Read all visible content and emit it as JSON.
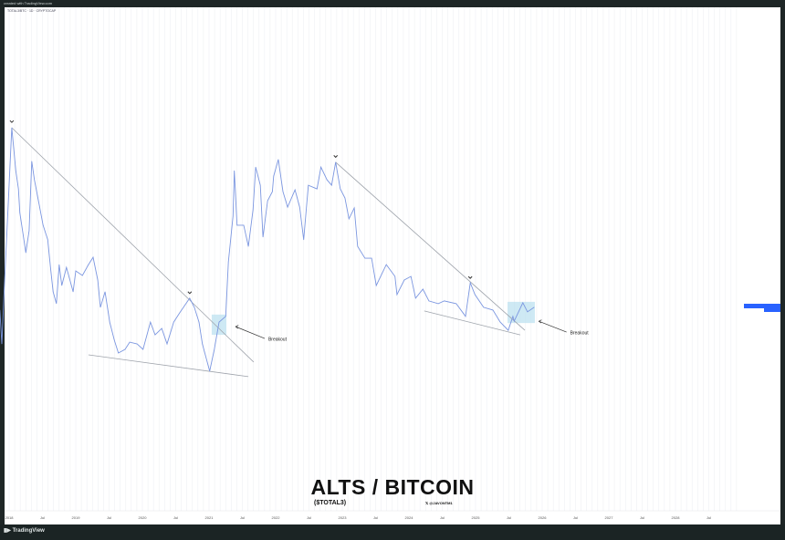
{
  "header": {
    "caption": "created with TradingView.com",
    "legend": "TOTAL3/BTC · 1D · CRYPTOCAP"
  },
  "footer": {
    "logo": "TradingView"
  },
  "colors": {
    "series": "#7b96e0",
    "trendline": "#b8bcc4",
    "highlight": "#b9dff0",
    "price_tag": "#2962ff",
    "frame": "#1e2626"
  },
  "chart_data": {
    "type": "line",
    "title": "ALTS / BITCOIN",
    "subtitle": "($TOTAL3)",
    "handle": "@JAVONTM1",
    "xlabel": "",
    "ylabel": "",
    "y_scale_note": "",
    "x_ticks": [
      "2018",
      "Jul",
      "2019",
      "Jul",
      "2020",
      "Jul",
      "2021",
      "Jul",
      "2022",
      "Jul",
      "2023",
      "Jul",
      "2024",
      "Jul",
      "2025",
      "Jul",
      "2026",
      "Jul",
      "2027",
      "Jul",
      "2028",
      "Jul"
    ],
    "xlim": [
      2017.86,
      2028.9
    ],
    "ylim": [
      -26,
      140
    ],
    "grid": "vertical",
    "series": [
      {
        "x": [
          2017.86,
          2017.89,
          2017.92,
          2018.04,
          2018.1,
          2018.14,
          2018.16,
          2018.21,
          2018.25,
          2018.3,
          2018.34,
          2018.38,
          2018.44,
          2018.51,
          2018.58,
          2018.62,
          2018.66,
          2018.71,
          2018.75,
          2018.79,
          2018.86,
          2018.96,
          2019.0,
          2019.1,
          2019.19,
          2019.26,
          2019.33,
          2019.37,
          2019.44,
          2019.51,
          2019.58,
          2019.64,
          2019.74,
          2019.81,
          2019.92,
          2020.01,
          2020.12,
          2020.19,
          2020.29,
          2020.37,
          2020.47,
          2020.56,
          2020.71,
          2020.78,
          2020.85,
          2020.9,
          2021.01,
          2021.08,
          2021.15,
          2021.25,
          2021.29,
          2021.36,
          2021.38,
          2021.42,
          2021.52,
          2021.59,
          2021.66,
          2021.7,
          2021.77,
          2021.81,
          2021.88,
          2021.95,
          2021.97,
          2022.04,
          2022.11,
          2022.18,
          2022.29,
          2022.36,
          2022.42,
          2022.49,
          2022.62,
          2022.68,
          2022.77,
          2022.84,
          2022.9,
          2022.97,
          2023.04,
          2023.1,
          2023.18,
          2023.23,
          2023.34,
          2023.44,
          2023.51,
          2023.66,
          2023.79,
          2023.82,
          2023.93,
          2024.03,
          2024.1,
          2024.21,
          2024.3,
          2024.44,
          2024.53,
          2024.71,
          2024.85,
          2024.92,
          2024.99,
          2025.12,
          2025.26,
          2025.37,
          2025.49,
          2025.56,
          2025.58,
          2025.71,
          2025.78,
          2025.88
        ],
        "y": [
          39.8,
          28.6,
          43.7,
          100,
          85.8,
          79.8,
          72.0,
          64.8,
          58.7,
          66.0,
          88.9,
          82.8,
          75.9,
          67.8,
          63.0,
          53.9,
          45.8,
          41.9,
          54.8,
          47.9,
          53.9,
          45.8,
          52.7,
          51.2,
          54.8,
          57.2,
          49.7,
          40.7,
          45.8,
          35.8,
          29.8,
          25.6,
          26.8,
          29.2,
          28.6,
          26.8,
          35.8,
          31.6,
          33.7,
          28.6,
          35.8,
          38.9,
          43.7,
          40.7,
          35.8,
          28.6,
          19.6,
          26.8,
          35.8,
          37.7,
          55.7,
          70.8,
          85.8,
          67.8,
          67.8,
          60.8,
          72.9,
          87.0,
          81.0,
          63.9,
          75.9,
          78.9,
          84.0,
          89.5,
          78.9,
          73.8,
          79.5,
          73.8,
          63.0,
          81.0,
          79.8,
          87.0,
          82.8,
          81.0,
          88.6,
          79.8,
          76.8,
          69.9,
          73.5,
          60.8,
          56.9,
          56.9,
          47.9,
          54.8,
          50.9,
          44.9,
          49.7,
          50.9,
          43.7,
          46.7,
          42.8,
          41.9,
          42.8,
          41.9,
          37.7,
          48.8,
          44.9,
          40.7,
          39.8,
          35.8,
          33.1,
          37.7,
          36.1,
          42.2,
          39.2,
          40.7
        ]
      }
    ],
    "trendlines": [
      {
        "from": [
          2018.04,
          100
        ],
        "to": [
          2021.67,
          22.6
        ]
      },
      {
        "from": [
          2019.19,
          25.0
        ],
        "to": [
          2021.59,
          17.8
        ]
      },
      {
        "from": [
          2022.9,
          88.6
        ],
        "to": [
          2025.74,
          33.1
        ]
      },
      {
        "from": [
          2024.23,
          39.5
        ],
        "to": [
          2025.67,
          31.6
        ]
      }
    ],
    "highlight_zones": [
      {
        "x": [
          2021.04,
          2021.26
        ],
        "y": [
          31.6,
          38.3
        ]
      },
      {
        "x": [
          2025.48,
          2025.89
        ],
        "y": [
          35.5,
          42.5
        ]
      }
    ],
    "pivot_markers": [
      [
        2018.04,
        101
      ],
      [
        2020.71,
        44.5
      ],
      [
        2022.9,
        89.5
      ],
      [
        2024.92,
        49.5
      ]
    ],
    "annotations": [
      {
        "text": "Breakout",
        "arrow_tip": [
          2021.4,
          34.3
        ],
        "label_at": [
          2021.89,
          30.1
        ]
      },
      {
        "text": "Breakout",
        "arrow_tip": [
          2025.95,
          36.1
        ],
        "label_at": [
          2026.42,
          32.2
        ]
      }
    ],
    "last_value": 40.7
  }
}
